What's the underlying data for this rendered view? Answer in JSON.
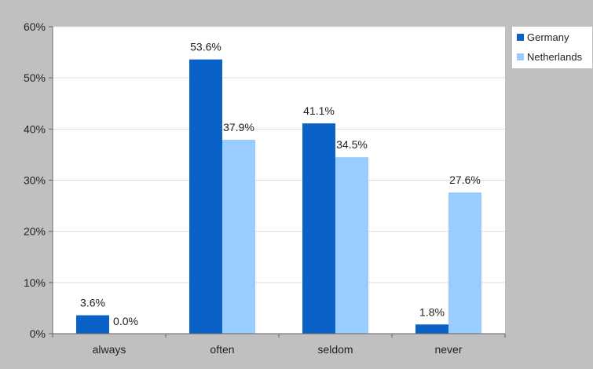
{
  "chart_data": {
    "type": "bar",
    "title": "",
    "xlabel": "",
    "ylabel": "",
    "categories": [
      "always",
      "often",
      "seldom",
      "never"
    ],
    "series": [
      {
        "name": "Germany",
        "color": "#0a62c9",
        "values": [
          3.6,
          53.6,
          41.1,
          1.8
        ],
        "labels": [
          "3.6%",
          "53.6%",
          "41.1%",
          "1.8%"
        ]
      },
      {
        "name": "Netherlands",
        "color": "#99ccff",
        "values": [
          0.0,
          37.9,
          34.5,
          27.6
        ],
        "labels": [
          "0.0%",
          "37.9%",
          "34.5%",
          "27.6%"
        ]
      }
    ],
    "ylim": [
      0,
      60
    ],
    "yticks": [
      0,
      10,
      20,
      30,
      40,
      50,
      60
    ],
    "ytick_labels": [
      "0%",
      "10%",
      "20%",
      "30%",
      "40%",
      "50%",
      "60%"
    ],
    "grid": true,
    "legend_position": "top-right",
    "plot_background": "#ffffff",
    "figure_background": "#c0c0c0",
    "gridline_color": "#dddddd"
  }
}
